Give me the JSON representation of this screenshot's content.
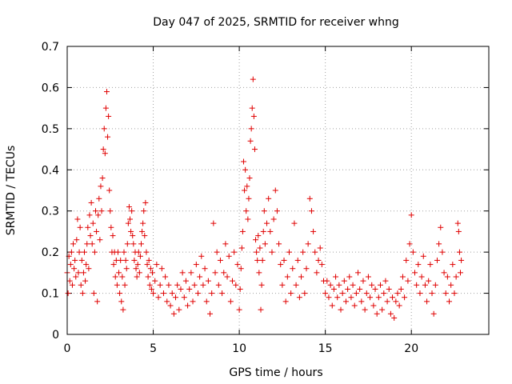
{
  "chart_data": {
    "type": "scatter",
    "title": "Day 047 of 2025, SRMTID for receiver whng",
    "xlabel": "GPS time / hours",
    "ylabel": "SRMTID / TECUs",
    "xlim": [
      0,
      24.5
    ],
    "ylim": [
      0,
      0.7
    ],
    "xticks": [
      0,
      5,
      10,
      15,
      20
    ],
    "yticks": [
      0,
      0.1,
      0.2,
      0.3,
      0.4,
      0.5,
      0.6,
      0.7
    ],
    "grid": true,
    "marker": "plus",
    "color": "#e00000",
    "series": [
      {
        "name": "SRMTID",
        "points": [
          [
            0.0,
            0.15
          ],
          [
            0.05,
            0.1
          ],
          [
            0.1,
            0.19
          ],
          [
            0.15,
            0.13
          ],
          [
            0.2,
            0.17
          ],
          [
            0.25,
            0.2
          ],
          [
            0.3,
            0.12
          ],
          [
            0.35,
            0.22
          ],
          [
            0.4,
            0.16
          ],
          [
            0.45,
            0.18
          ],
          [
            0.5,
            0.14
          ],
          [
            0.55,
            0.23
          ],
          [
            0.6,
            0.28
          ],
          [
            0.65,
            0.15
          ],
          [
            0.7,
            0.2
          ],
          [
            0.75,
            0.26
          ],
          [
            0.8,
            0.12
          ],
          [
            0.85,
            0.18
          ],
          [
            0.9,
            0.1
          ],
          [
            0.95,
            0.15
          ],
          [
            1.0,
            0.2
          ],
          [
            1.05,
            0.13
          ],
          [
            1.1,
            0.17
          ],
          [
            1.15,
            0.22
          ],
          [
            1.2,
            0.26
          ],
          [
            1.25,
            0.16
          ],
          [
            1.3,
            0.29
          ],
          [
            1.35,
            0.24
          ],
          [
            1.4,
            0.32
          ],
          [
            1.45,
            0.22
          ],
          [
            1.5,
            0.27
          ],
          [
            1.55,
            0.1
          ],
          [
            1.6,
            0.2
          ],
          [
            1.65,
            0.3
          ],
          [
            1.7,
            0.25
          ],
          [
            1.75,
            0.08
          ],
          [
            1.8,
            0.29
          ],
          [
            1.85,
            0.33
          ],
          [
            1.9,
            0.23
          ],
          [
            1.95,
            0.36
          ],
          [
            2.0,
            0.3
          ],
          [
            2.05,
            0.38
          ],
          [
            2.1,
            0.45
          ],
          [
            2.15,
            0.5
          ],
          [
            2.2,
            0.44
          ],
          [
            2.25,
            0.55
          ],
          [
            2.3,
            0.59
          ],
          [
            2.35,
            0.48
          ],
          [
            2.4,
            0.53
          ],
          [
            2.45,
            0.35
          ],
          [
            2.5,
            0.3
          ],
          [
            2.55,
            0.26
          ],
          [
            2.6,
            0.2
          ],
          [
            2.65,
            0.24
          ],
          [
            2.7,
            0.17
          ],
          [
            2.75,
            0.2
          ],
          [
            2.8,
            0.14
          ],
          [
            2.85,
            0.18
          ],
          [
            2.9,
            0.12
          ],
          [
            2.95,
            0.2
          ],
          [
            3.0,
            0.15
          ],
          [
            3.05,
            0.1
          ],
          [
            3.1,
            0.18
          ],
          [
            3.15,
            0.08
          ],
          [
            3.2,
            0.14
          ],
          [
            3.25,
            0.06
          ],
          [
            3.3,
            0.2
          ],
          [
            3.35,
            0.12
          ],
          [
            3.4,
            0.18
          ],
          [
            3.45,
            0.16
          ],
          [
            3.5,
            0.22
          ],
          [
            3.55,
            0.27
          ],
          [
            3.6,
            0.31
          ],
          [
            3.65,
            0.28
          ],
          [
            3.7,
            0.25
          ],
          [
            3.75,
            0.3
          ],
          [
            3.8,
            0.24
          ],
          [
            3.85,
            0.22
          ],
          [
            3.9,
            0.18
          ],
          [
            3.95,
            0.2
          ],
          [
            4.0,
            0.16
          ],
          [
            4.05,
            0.14
          ],
          [
            4.1,
            0.17
          ],
          [
            4.15,
            0.2
          ],
          [
            4.2,
            0.15
          ],
          [
            4.25,
            0.19
          ],
          [
            4.3,
            0.22
          ],
          [
            4.35,
            0.25
          ],
          [
            4.4,
            0.27
          ],
          [
            4.45,
            0.3
          ],
          [
            4.5,
            0.24
          ],
          [
            4.55,
            0.32
          ],
          [
            4.6,
            0.2
          ],
          [
            4.65,
            0.17
          ],
          [
            4.7,
            0.14
          ],
          [
            4.75,
            0.18
          ],
          [
            4.8,
            0.12
          ],
          [
            4.85,
            0.16
          ],
          [
            4.9,
            0.11
          ],
          [
            4.95,
            0.15
          ],
          [
            5.0,
            0.1
          ],
          [
            5.1,
            0.13
          ],
          [
            5.2,
            0.17
          ],
          [
            5.3,
            0.09
          ],
          [
            5.4,
            0.12
          ],
          [
            5.5,
            0.16
          ],
          [
            5.6,
            0.1
          ],
          [
            5.7,
            0.14
          ],
          [
            5.8,
            0.08
          ],
          [
            5.9,
            0.12
          ],
          [
            6.0,
            0.07
          ],
          [
            6.1,
            0.1
          ],
          [
            6.2,
            0.05
          ],
          [
            6.3,
            0.09
          ],
          [
            6.4,
            0.12
          ],
          [
            6.5,
            0.06
          ],
          [
            6.6,
            0.11
          ],
          [
            6.7,
            0.15
          ],
          [
            6.8,
            0.09
          ],
          [
            6.9,
            0.13
          ],
          [
            7.0,
            0.07
          ],
          [
            7.1,
            0.11
          ],
          [
            7.2,
            0.15
          ],
          [
            7.3,
            0.08
          ],
          [
            7.4,
            0.12
          ],
          [
            7.5,
            0.17
          ],
          [
            7.6,
            0.1
          ],
          [
            7.7,
            0.14
          ],
          [
            7.8,
            0.19
          ],
          [
            7.9,
            0.12
          ],
          [
            8.0,
            0.16
          ],
          [
            8.1,
            0.08
          ],
          [
            8.2,
            0.13
          ],
          [
            8.3,
            0.05
          ],
          [
            8.4,
            0.1
          ],
          [
            8.5,
            0.27
          ],
          [
            8.6,
            0.15
          ],
          [
            8.7,
            0.2
          ],
          [
            8.8,
            0.12
          ],
          [
            8.9,
            0.18
          ],
          [
            9.0,
            0.1
          ],
          [
            9.1,
            0.15
          ],
          [
            9.2,
            0.22
          ],
          [
            9.3,
            0.14
          ],
          [
            9.4,
            0.19
          ],
          [
            9.5,
            0.08
          ],
          [
            9.6,
            0.13
          ],
          [
            9.7,
            0.2
          ],
          [
            9.8,
            0.12
          ],
          [
            9.9,
            0.17
          ],
          [
            10.0,
            0.06
          ],
          [
            10.05,
            0.11
          ],
          [
            10.1,
            0.16
          ],
          [
            10.15,
            0.21
          ],
          [
            10.2,
            0.25
          ],
          [
            10.25,
            0.42
          ],
          [
            10.3,
            0.35
          ],
          [
            10.35,
            0.4
          ],
          [
            10.4,
            0.3
          ],
          [
            10.45,
            0.36
          ],
          [
            10.5,
            0.28
          ],
          [
            10.55,
            0.33
          ],
          [
            10.6,
            0.38
          ],
          [
            10.65,
            0.47
          ],
          [
            10.7,
            0.5
          ],
          [
            10.75,
            0.55
          ],
          [
            10.8,
            0.62
          ],
          [
            10.85,
            0.53
          ],
          [
            10.9,
            0.45
          ],
          [
            10.95,
            0.23
          ],
          [
            11.0,
            0.2
          ],
          [
            11.05,
            0.18
          ],
          [
            11.1,
            0.24
          ],
          [
            11.15,
            0.15
          ],
          [
            11.2,
            0.21
          ],
          [
            11.25,
            0.06
          ],
          [
            11.3,
            0.12
          ],
          [
            11.35,
            0.18
          ],
          [
            11.4,
            0.25
          ],
          [
            11.45,
            0.3
          ],
          [
            11.5,
            0.22
          ],
          [
            11.6,
            0.27
          ],
          [
            11.7,
            0.33
          ],
          [
            11.8,
            0.25
          ],
          [
            11.9,
            0.2
          ],
          [
            12.0,
            0.28
          ],
          [
            12.1,
            0.35
          ],
          [
            12.2,
            0.3
          ],
          [
            12.3,
            0.22
          ],
          [
            12.4,
            0.17
          ],
          [
            12.5,
            0.12
          ],
          [
            12.6,
            0.18
          ],
          [
            12.7,
            0.08
          ],
          [
            12.8,
            0.14
          ],
          [
            12.9,
            0.2
          ],
          [
            13.0,
            0.1
          ],
          [
            13.1,
            0.16
          ],
          [
            13.2,
            0.27
          ],
          [
            13.3,
            0.12
          ],
          [
            13.4,
            0.18
          ],
          [
            13.5,
            0.09
          ],
          [
            13.6,
            0.14
          ],
          [
            13.7,
            0.2
          ],
          [
            13.8,
            0.1
          ],
          [
            13.9,
            0.16
          ],
          [
            14.0,
            0.22
          ],
          [
            14.1,
            0.33
          ],
          [
            14.2,
            0.3
          ],
          [
            14.3,
            0.25
          ],
          [
            14.4,
            0.2
          ],
          [
            14.5,
            0.15
          ],
          [
            14.6,
            0.18
          ],
          [
            14.7,
            0.21
          ],
          [
            14.8,
            0.17
          ],
          [
            14.9,
            0.13
          ],
          [
            15.0,
            0.1
          ],
          [
            15.1,
            0.13
          ],
          [
            15.2,
            0.09
          ],
          [
            15.3,
            0.12
          ],
          [
            15.4,
            0.07
          ],
          [
            15.5,
            0.11
          ],
          [
            15.6,
            0.14
          ],
          [
            15.7,
            0.09
          ],
          [
            15.8,
            0.12
          ],
          [
            15.9,
            0.06
          ],
          [
            16.0,
            0.1
          ],
          [
            16.1,
            0.13
          ],
          [
            16.2,
            0.08
          ],
          [
            16.3,
            0.11
          ],
          [
            16.4,
            0.14
          ],
          [
            16.5,
            0.09
          ],
          [
            16.6,
            0.12
          ],
          [
            16.7,
            0.07
          ],
          [
            16.8,
            0.1
          ],
          [
            16.9,
            0.15
          ],
          [
            17.0,
            0.11
          ],
          [
            17.1,
            0.08
          ],
          [
            17.2,
            0.13
          ],
          [
            17.3,
            0.06
          ],
          [
            17.4,
            0.1
          ],
          [
            17.5,
            0.14
          ],
          [
            17.6,
            0.09
          ],
          [
            17.7,
            0.12
          ],
          [
            17.8,
            0.07
          ],
          [
            17.9,
            0.11
          ],
          [
            18.0,
            0.05
          ],
          [
            18.1,
            0.09
          ],
          [
            18.2,
            0.12
          ],
          [
            18.3,
            0.06
          ],
          [
            18.4,
            0.1
          ],
          [
            18.5,
            0.13
          ],
          [
            18.6,
            0.08
          ],
          [
            18.7,
            0.11
          ],
          [
            18.8,
            0.05
          ],
          [
            18.9,
            0.09
          ],
          [
            19.0,
            0.04
          ],
          [
            19.1,
            0.08
          ],
          [
            19.2,
            0.1
          ],
          [
            19.3,
            0.07
          ],
          [
            19.4,
            0.11
          ],
          [
            19.5,
            0.14
          ],
          [
            19.6,
            0.09
          ],
          [
            19.7,
            0.18
          ],
          [
            19.8,
            0.13
          ],
          [
            19.9,
            0.22
          ],
          [
            20.0,
            0.29
          ],
          [
            20.1,
            0.2
          ],
          [
            20.2,
            0.15
          ],
          [
            20.3,
            0.12
          ],
          [
            20.4,
            0.17
          ],
          [
            20.5,
            0.1
          ],
          [
            20.6,
            0.14
          ],
          [
            20.7,
            0.19
          ],
          [
            20.8,
            0.12
          ],
          [
            20.9,
            0.08
          ],
          [
            21.0,
            0.13
          ],
          [
            21.1,
            0.17
          ],
          [
            21.2,
            0.1
          ],
          [
            21.3,
            0.05
          ],
          [
            21.4,
            0.12
          ],
          [
            21.5,
            0.18
          ],
          [
            21.6,
            0.22
          ],
          [
            21.7,
            0.26
          ],
          [
            21.8,
            0.2
          ],
          [
            21.9,
            0.15
          ],
          [
            22.0,
            0.1
          ],
          [
            22.1,
            0.14
          ],
          [
            22.2,
            0.08
          ],
          [
            22.3,
            0.12
          ],
          [
            22.4,
            0.17
          ],
          [
            22.5,
            0.1
          ],
          [
            22.6,
            0.14
          ],
          [
            22.7,
            0.27
          ],
          [
            22.75,
            0.25
          ],
          [
            22.8,
            0.2
          ],
          [
            22.85,
            0.15
          ],
          [
            22.9,
            0.18
          ]
        ]
      }
    ]
  }
}
